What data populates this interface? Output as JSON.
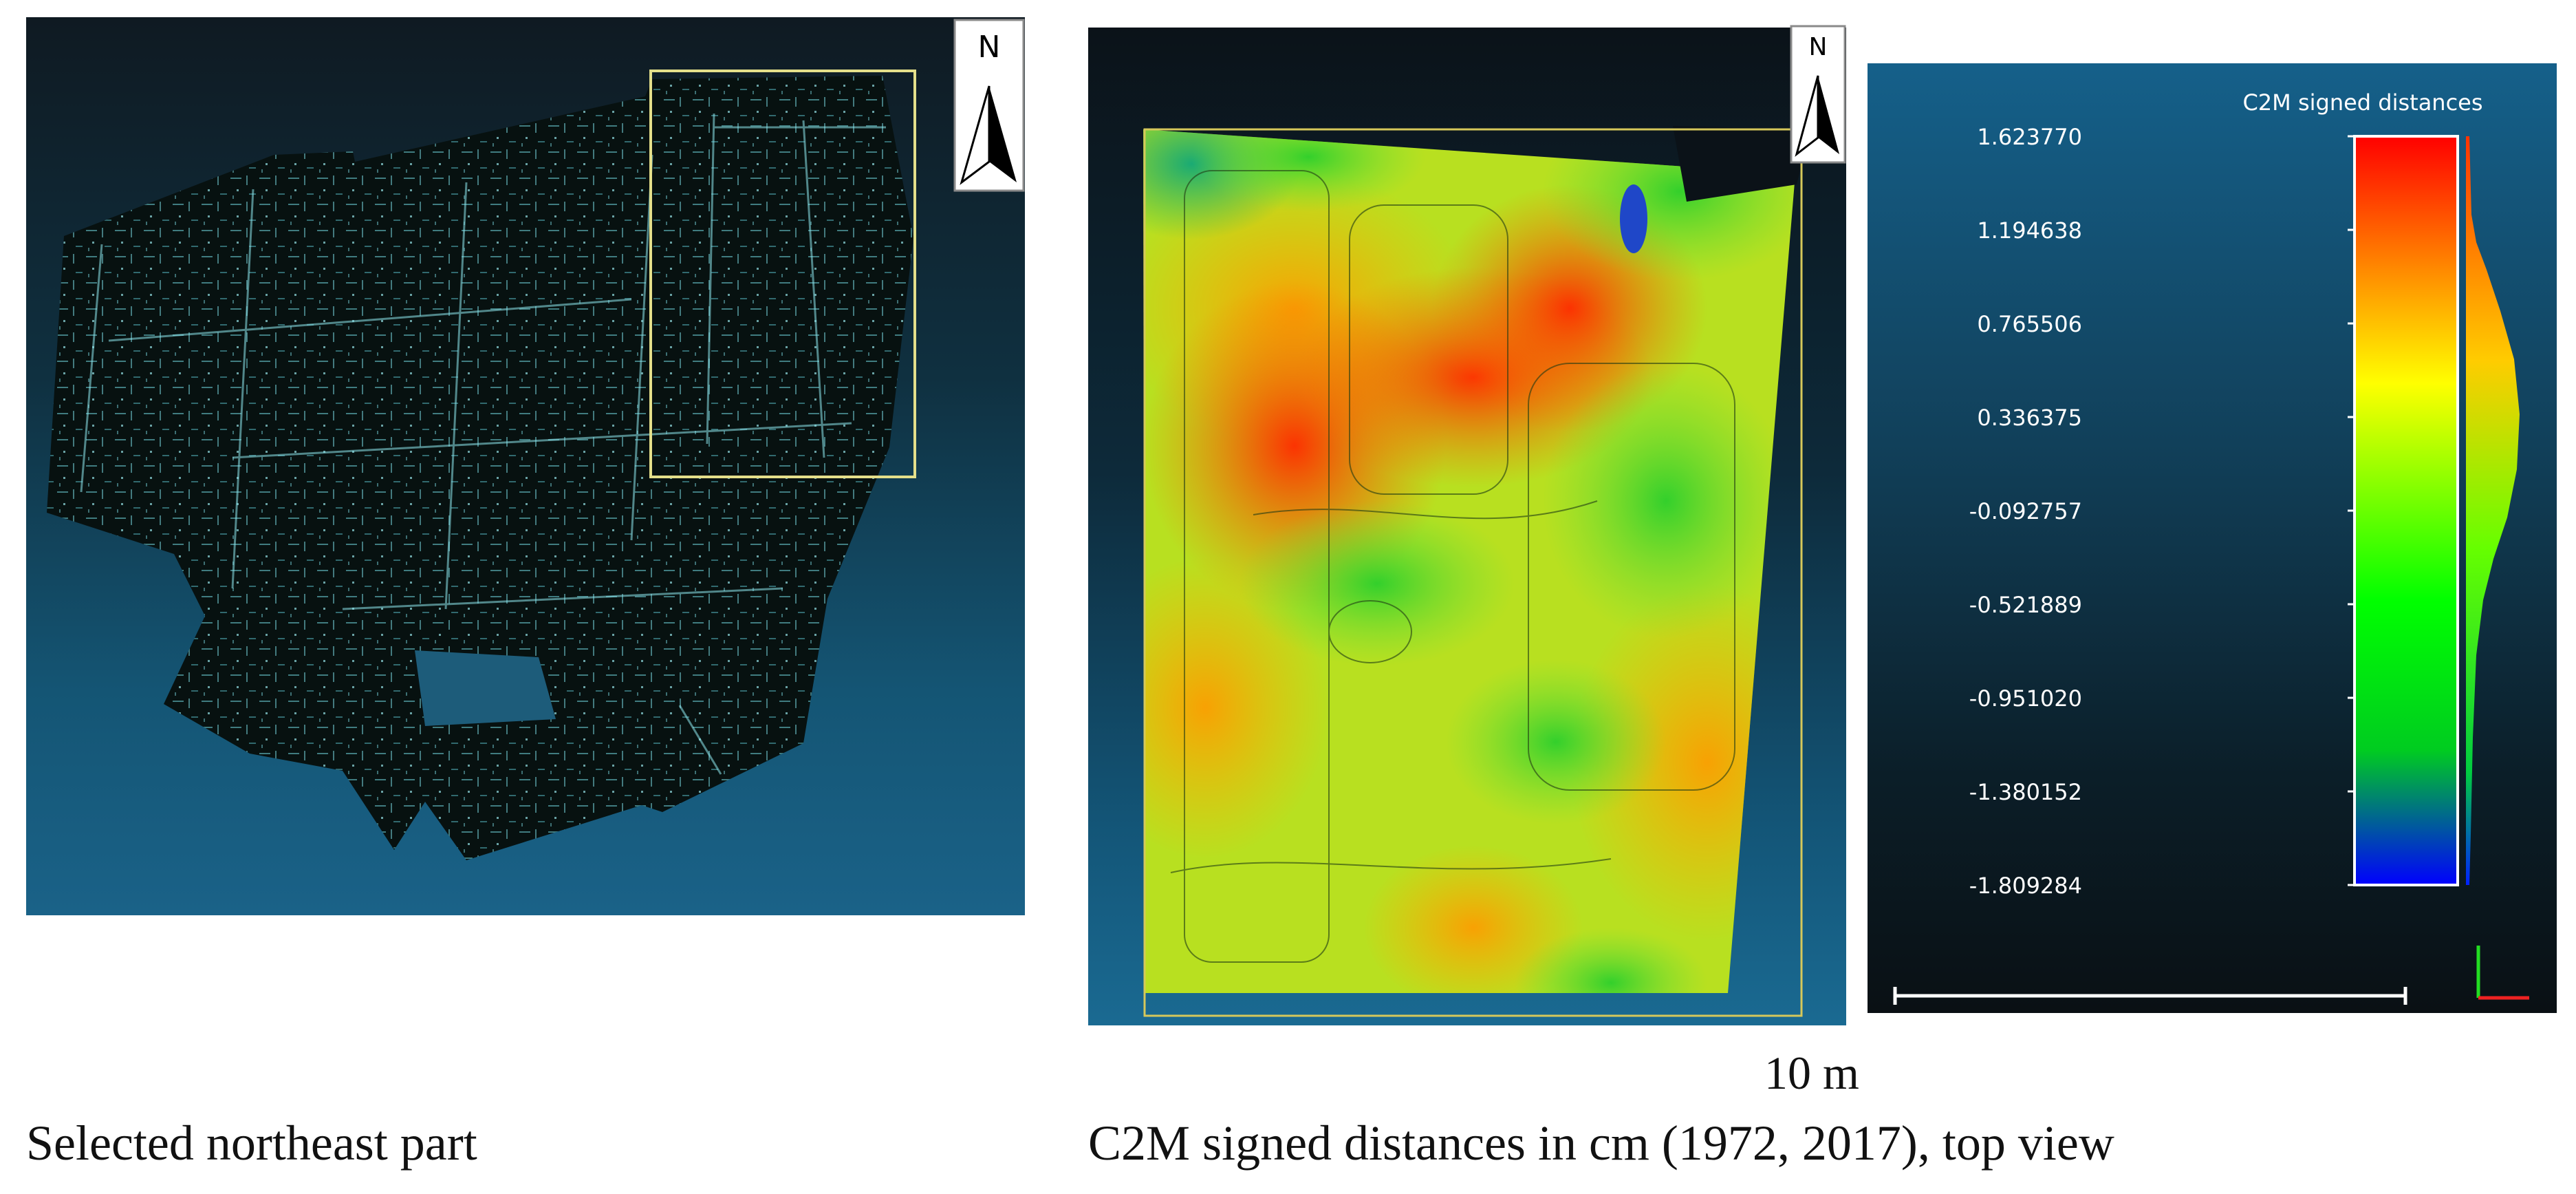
{
  "captions": {
    "left": "Selected northeast part",
    "right": "C2M signed distances in cm (1972, 2017), top view"
  },
  "scale_bar": {
    "label": "10 m"
  },
  "north_arrow": {
    "label": "N"
  },
  "colorbar": {
    "title": "C2M signed distances",
    "ticks": [
      "1.623770",
      "1.194638",
      "0.765506",
      "0.336375",
      "-0.092757",
      "-0.521889",
      "-0.951020",
      "-1.380152",
      "-1.809284"
    ],
    "colors": [
      "#ff0000",
      "#ffff00",
      "#00ff00",
      "#0000ff"
    ]
  },
  "colors": {
    "selection_box": "#e4df8a",
    "point_cloud": "#7fe3ec"
  }
}
